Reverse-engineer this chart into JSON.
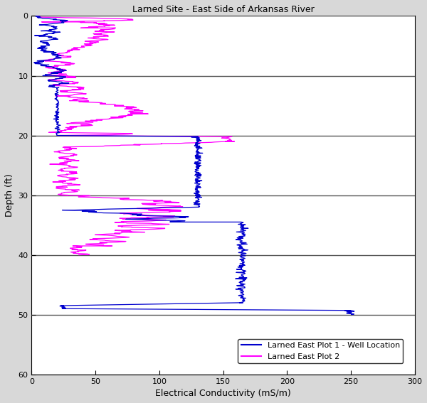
{
  "title": "Larned Site - East Side of Arkansas River",
  "xlabel": "Electrical Conductivity (mS/m)",
  "ylabel": "Depth (ft)",
  "xlim": [
    0,
    300
  ],
  "ylim": [
    60,
    0
  ],
  "yticks": [
    0,
    10,
    20,
    30,
    40,
    50,
    60
  ],
  "xticks": [
    0,
    50,
    100,
    150,
    200,
    250,
    300
  ],
  "line1_color": "#0000CD",
  "line2_color": "#FF00FF",
  "line1_label": "Larned East Plot 1 - Well Location",
  "line2_label": "Larned East Plot 2",
  "figsize": [
    6.0,
    5.67
  ],
  "dpi": 100,
  "bg_color": "#f0f0f0"
}
